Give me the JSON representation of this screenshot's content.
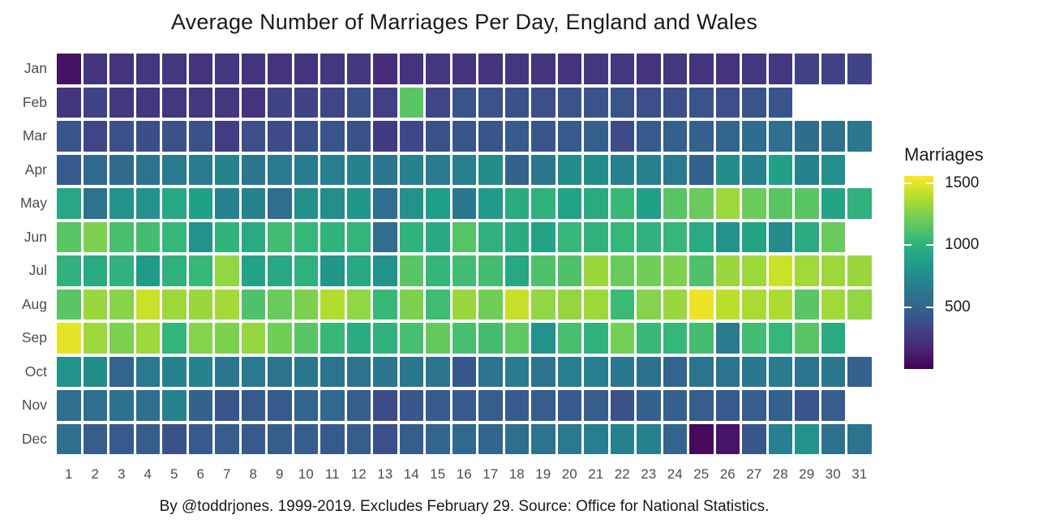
{
  "title": "Average Number of Marriages Per Day, England and Wales",
  "caption": "By @toddrjones. 1999-2019. Excludes February 29. Source: Office for National Statistics.",
  "legend": {
    "title": "Marriages",
    "ticks": [
      1500,
      1000,
      500
    ],
    "position": "right"
  },
  "colors": {
    "background": "#ffffff",
    "axis_text": "#4d4d4d",
    "title_text": "#1a1a1a",
    "colormap_low": "#440154",
    "colormap_mid": "#21918c",
    "colormap_high": "#fde725"
  },
  "chart_data": {
    "type": "heatmap",
    "title": "Average Number of Marriages Per Day, England and Wales",
    "xlabel": "",
    "ylabel": "",
    "colormap": "viridis",
    "value_domain": [
      0,
      1560
    ],
    "legend_title": "Marriages",
    "legend_ticks": [
      1500,
      1000,
      500
    ],
    "grid": false,
    "days": [
      1,
      2,
      3,
      4,
      5,
      6,
      7,
      8,
      9,
      10,
      11,
      12,
      13,
      14,
      15,
      16,
      17,
      18,
      19,
      20,
      21,
      22,
      23,
      24,
      25,
      26,
      27,
      28,
      29,
      30,
      31
    ],
    "months": [
      {
        "name": "Jan",
        "values": [
          75,
          235,
          235,
          245,
          245,
          235,
          245,
          235,
          235,
          235,
          245,
          245,
          195,
          235,
          245,
          235,
          235,
          245,
          235,
          235,
          245,
          245,
          235,
          245,
          235,
          235,
          245,
          255,
          310,
          310,
          320
        ]
      },
      {
        "name": "Feb",
        "values": [
          240,
          320,
          250,
          250,
          250,
          250,
          250,
          230,
          320,
          320,
          330,
          390,
          300,
          1150,
          330,
          400,
          400,
          390,
          380,
          400,
          400,
          400,
          380,
          380,
          400,
          380,
          400,
          410
        ]
      },
      {
        "name": "Mar",
        "values": [
          420,
          330,
          390,
          370,
          390,
          390,
          280,
          380,
          350,
          390,
          410,
          390,
          270,
          340,
          390,
          420,
          420,
          440,
          420,
          450,
          470,
          350,
          450,
          470,
          480,
          500,
          550,
          570,
          550,
          570,
          620
        ]
      },
      {
        "name": "Apr",
        "values": [
          450,
          520,
          540,
          600,
          640,
          640,
          700,
          610,
          640,
          650,
          670,
          690,
          610,
          690,
          640,
          670,
          760,
          490,
          620,
          760,
          760,
          680,
          680,
          630,
          490,
          760,
          690,
          880,
          690,
          770
        ]
      },
      {
        "name": "May",
        "values": [
          930,
          600,
          790,
          790,
          930,
          880,
          690,
          700,
          560,
          780,
          770,
          820,
          560,
          790,
          870,
          620,
          850,
          950,
          1000,
          900,
          950,
          1050,
          880,
          1150,
          1200,
          1330,
          1200,
          1150,
          1150,
          900,
          1000
        ]
      },
      {
        "name": "Jun",
        "values": [
          1150,
          1250,
          1100,
          1090,
          1040,
          790,
          1010,
          950,
          1080,
          1040,
          1010,
          1020,
          560,
          1010,
          940,
          1140,
          1000,
          950,
          900,
          1040,
          1000,
          1040,
          1000,
          1040,
          950,
          800,
          900,
          750,
          950,
          1200
        ]
      },
      {
        "name": "Jul",
        "values": [
          1000,
          950,
          1000,
          850,
          990,
          1050,
          1300,
          900,
          930,
          990,
          820,
          930,
          800,
          1150,
          1030,
          1080,
          1090,
          930,
          1120,
          1120,
          1320,
          1200,
          1220,
          1250,
          1120,
          1320,
          1330,
          1440,
          1340,
          1330,
          1320
        ]
      },
      {
        "name": "Aug",
        "values": [
          1150,
          1320,
          1280,
          1440,
          1330,
          1320,
          1350,
          1120,
          1200,
          1250,
          1380,
          1300,
          1050,
          1250,
          1070,
          1320,
          1220,
          1430,
          1300,
          1310,
          1330,
          1060,
          1270,
          1320,
          1520,
          1400,
          1360,
          1370,
          1150,
          1340,
          1300
        ]
      },
      {
        "name": "Sep",
        "values": [
          1500,
          1330,
          1250,
          1330,
          1020,
          1270,
          1250,
          1310,
          1220,
          1150,
          1050,
          960,
          1000,
          1100,
          1190,
          1100,
          1090,
          1170,
          800,
          1100,
          1000,
          1230,
          1050,
          1040,
          1090,
          650,
          1080,
          1040,
          1150,
          950
        ]
      },
      {
        "name": "Oct",
        "values": [
          800,
          760,
          500,
          640,
          700,
          690,
          610,
          630,
          600,
          620,
          600,
          590,
          610,
          620,
          600,
          430,
          600,
          650,
          600,
          670,
          670,
          620,
          580,
          500,
          600,
          600,
          620,
          650,
          600,
          620,
          480
        ]
      },
      {
        "name": "Nov",
        "values": [
          560,
          560,
          580,
          560,
          680,
          490,
          410,
          440,
          440,
          500,
          520,
          460,
          360,
          430,
          440,
          440,
          460,
          440,
          460,
          440,
          460,
          390,
          480,
          480,
          460,
          440,
          460,
          480,
          410,
          460
        ]
      },
      {
        "name": "Dec",
        "values": [
          560,
          460,
          440,
          460,
          390,
          440,
          460,
          440,
          460,
          460,
          440,
          460,
          380,
          460,
          500,
          520,
          510,
          560,
          590,
          630,
          660,
          680,
          680,
          500,
          40,
          90,
          420,
          680,
          800,
          580,
          600
        ]
      }
    ]
  }
}
